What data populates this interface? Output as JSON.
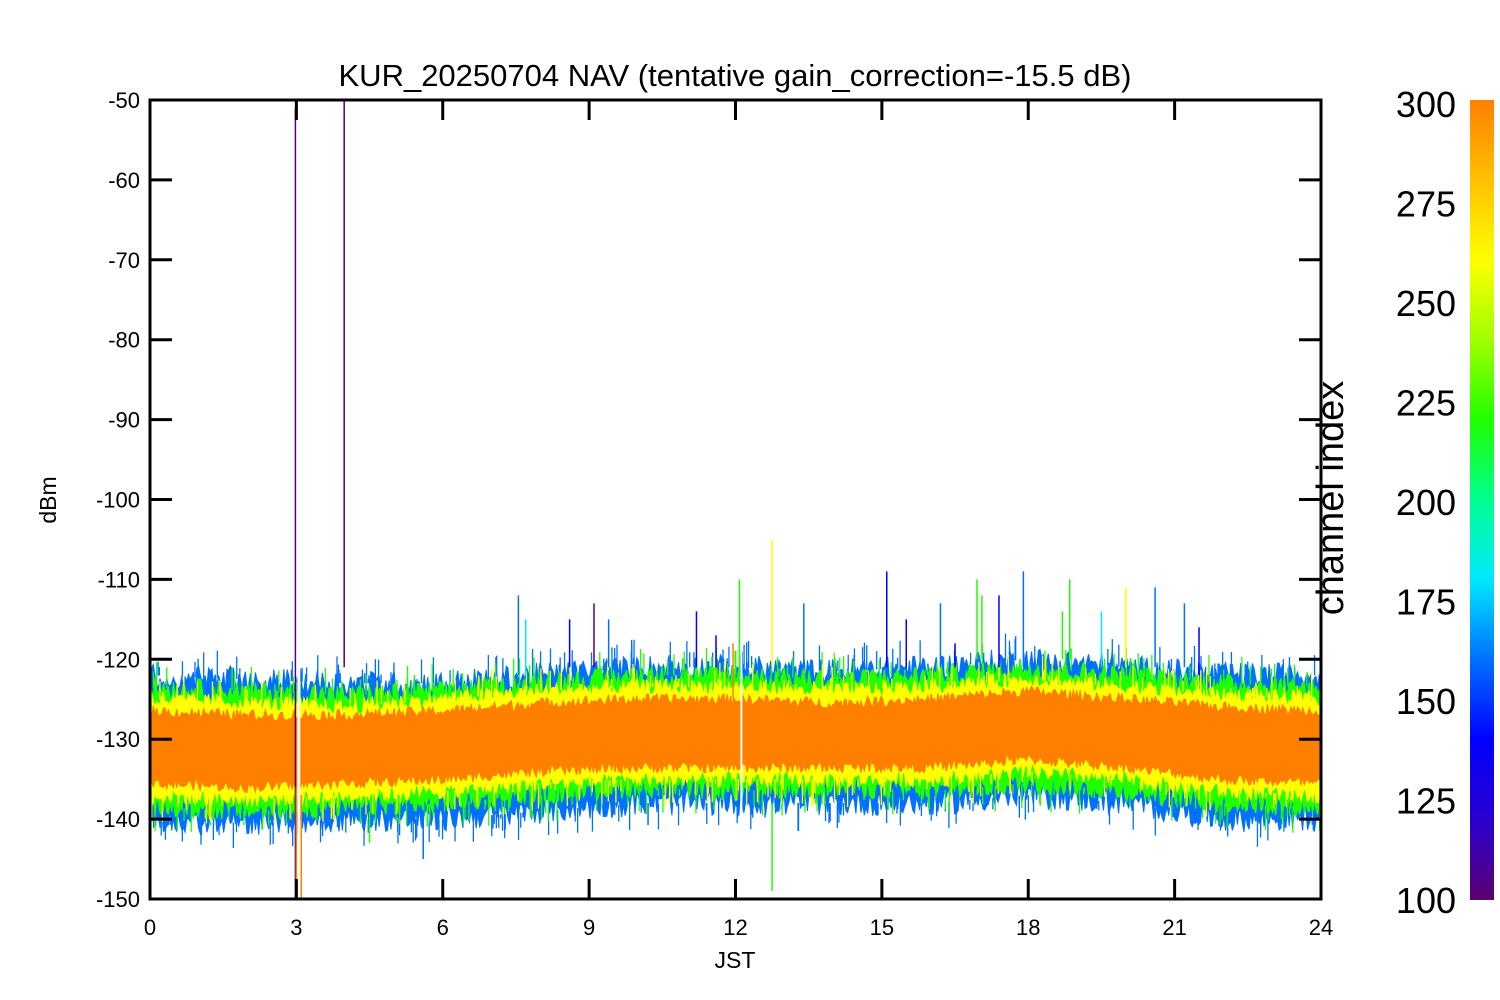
{
  "chart_data": {
    "type": "line",
    "title": "KUR_20250704 NAV (tentative gain_correction=-15.5 dB)",
    "xlabel": "JST",
    "ylabel": "dBm",
    "xlim": [
      0,
      24
    ],
    "ylim": [
      -150,
      -50
    ],
    "xticks": [
      "0",
      "3",
      "6",
      "9",
      "12",
      "15",
      "18",
      "21",
      "24"
    ],
    "yticks": [
      "-50",
      "-60",
      "-70",
      "-80",
      "-90",
      "-100",
      "-110",
      "-120",
      "-130",
      "-140",
      "-150"
    ],
    "grid": false,
    "colorbar": {
      "label": "channel index",
      "range": [
        100,
        300
      ],
      "ticks": [
        "300",
        "275",
        "250",
        "225",
        "200",
        "175",
        "150",
        "125",
        "100"
      ],
      "colormap": [
        "#5a0070",
        "#2a00d0",
        "#0000ff",
        "#0070ff",
        "#00e8ff",
        "#00ff90",
        "#20ff00",
        "#a0ff00",
        "#ffff00",
        "#ffc000",
        "#ff8000"
      ]
    },
    "bands": [
      {
        "name": "channel 150 (outer, blue/cyan)",
        "color": "#0070ff",
        "x": [
          0,
          2,
          4,
          6,
          8,
          10,
          12,
          14,
          16,
          18,
          20,
          22,
          24
        ],
        "upper": [
          -122,
          -122.5,
          -123,
          -123,
          -122,
          -121,
          -121,
          -121.5,
          -121,
          -120,
          -121,
          -122,
          -122
        ],
        "lower": [
          -140,
          -140.5,
          -140,
          -140,
          -139,
          -138,
          -138,
          -138,
          -138,
          -137,
          -138,
          -140,
          -140
        ]
      },
      {
        "name": "channel 220 (green)",
        "color": "#20ff00",
        "x": [
          0,
          2,
          4,
          6,
          8,
          10,
          12,
          14,
          16,
          18,
          20,
          22,
          24
        ],
        "upper": [
          -123.5,
          -124,
          -124.5,
          -124,
          -123,
          -122,
          -122,
          -122.5,
          -122,
          -121,
          -122,
          -123,
          -123.5
        ],
        "lower": [
          -138.5,
          -139,
          -138.5,
          -138,
          -137,
          -136,
          -136.5,
          -136,
          -136.5,
          -135.5,
          -136.5,
          -138,
          -138.5
        ]
      },
      {
        "name": "channel 260 (yellow)",
        "color": "#ffff00",
        "x": [
          0,
          2,
          4,
          6,
          8,
          10,
          12,
          14,
          16,
          18,
          20,
          22,
          24
        ],
        "upper": [
          -125,
          -125.5,
          -126,
          -125,
          -124,
          -123.5,
          -123.5,
          -124,
          -123.5,
          -122.5,
          -123.5,
          -124.5,
          -125
        ],
        "lower": [
          -137,
          -137.5,
          -137,
          -136.5,
          -135.5,
          -135,
          -135,
          -135,
          -135,
          -134,
          -135,
          -136.5,
          -137
        ]
      },
      {
        "name": "channel 300 (core, orange)",
        "color": "#ff8000",
        "x": [
          0,
          2,
          4,
          6,
          8,
          10,
          12,
          14,
          16,
          18,
          20,
          22,
          24
        ],
        "upper": [
          -126.5,
          -127,
          -127,
          -126.5,
          -125.5,
          -125,
          -125,
          -125.5,
          -125,
          -124,
          -125,
          -126,
          -126.5
        ],
        "lower": [
          -135.5,
          -136,
          -135.5,
          -135,
          -134,
          -133.5,
          -133.5,
          -133.5,
          -133.5,
          -132.5,
          -133.5,
          -135,
          -135.5
        ]
      }
    ],
    "spikes": [
      {
        "x": 2.98,
        "y0": -150,
        "y1": -51,
        "color": "#5a0070"
      },
      {
        "x": 3.0,
        "y0": -150,
        "y1": -136,
        "color": "#ff8000"
      },
      {
        "x": 3.1,
        "y0": -150,
        "y1": -137,
        "color": "#ff8000"
      },
      {
        "x": 3.98,
        "y0": -121,
        "y1": -50,
        "color": "#5a0070"
      },
      {
        "x": 7.55,
        "y0": -122,
        "y1": -112,
        "color": "#0070ff"
      },
      {
        "x": 7.7,
        "y0": -122,
        "y1": -115,
        "color": "#00e8ff"
      },
      {
        "x": 8.6,
        "y0": -121,
        "y1": -115,
        "color": "#0000ff"
      },
      {
        "x": 9.1,
        "y0": -121,
        "y1": -113,
        "color": "#5a0070"
      },
      {
        "x": 9.4,
        "y0": -121,
        "y1": -115,
        "color": "#0070ff"
      },
      {
        "x": 11.2,
        "y0": -121,
        "y1": -114,
        "color": "#0000ff"
      },
      {
        "x": 11.6,
        "y0": -121,
        "y1": -117,
        "color": "#0000ff"
      },
      {
        "x": 12.08,
        "y0": -122,
        "y1": -110,
        "color": "#20ff00"
      },
      {
        "x": 11.95,
        "y0": -125,
        "y1": -118,
        "color": "#ff8000"
      },
      {
        "x": 12.75,
        "y0": -121,
        "y1": -105,
        "color": "#ffff00"
      },
      {
        "x": 12.75,
        "y0": -138,
        "y1": -149,
        "color": "#20ff00"
      },
      {
        "x": 13.4,
        "y0": -121,
        "y1": -113,
        "color": "#0070ff"
      },
      {
        "x": 15.1,
        "y0": -121,
        "y1": -109,
        "color": "#0000ff"
      },
      {
        "x": 15.5,
        "y0": -121,
        "y1": -115,
        "color": "#0000ff"
      },
      {
        "x": 16.2,
        "y0": -121,
        "y1": -113,
        "color": "#0070ff"
      },
      {
        "x": 16.5,
        "y0": -121,
        "y1": -118,
        "color": "#0000ff"
      },
      {
        "x": 16.95,
        "y0": -120,
        "y1": -110,
        "color": "#20ff00"
      },
      {
        "x": 17.05,
        "y0": -120,
        "y1": -112,
        "color": "#20ff00"
      },
      {
        "x": 17.4,
        "y0": -121,
        "y1": -112,
        "color": "#0000ff"
      },
      {
        "x": 17.9,
        "y0": -121,
        "y1": -109,
        "color": "#0070ff"
      },
      {
        "x": 18.7,
        "y0": -120,
        "y1": -114,
        "color": "#20ff00"
      },
      {
        "x": 18.85,
        "y0": -120,
        "y1": -110,
        "color": "#20ff00"
      },
      {
        "x": 19.5,
        "y0": -121,
        "y1": -114,
        "color": "#00e8ff"
      },
      {
        "x": 20.0,
        "y0": -121,
        "y1": -111,
        "color": "#ffff00"
      },
      {
        "x": 20.6,
        "y0": -121,
        "y1": -111,
        "color": "#0070ff"
      },
      {
        "x": 21.2,
        "y0": -121,
        "y1": -113,
        "color": "#0070ff"
      },
      {
        "x": 21.5,
        "y0": -122,
        "y1": -116,
        "color": "#0000ff"
      },
      {
        "x": 5.6,
        "y0": -139,
        "y1": -145,
        "color": "#0070ff"
      },
      {
        "x": 4.5,
        "y0": -139,
        "y1": -143,
        "color": "#20ff00"
      }
    ]
  }
}
